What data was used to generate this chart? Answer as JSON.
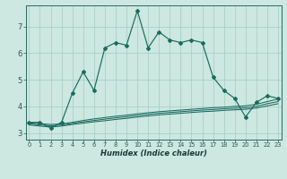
{
  "xlabel": "Humidex (Indice chaleur)",
  "bg_color": "#cce8e0",
  "grid_color": "#aacfc7",
  "line_color": "#1a6b60",
  "x_ticks": [
    0,
    1,
    2,
    3,
    4,
    5,
    6,
    7,
    8,
    9,
    10,
    11,
    12,
    13,
    14,
    15,
    16,
    17,
    18,
    19,
    20,
    21,
    22,
    23
  ],
  "y_ticks": [
    3,
    4,
    5,
    6,
    7
  ],
  "xlim": [
    -0.3,
    23.3
  ],
  "ylim": [
    2.75,
    7.8
  ],
  "main_line": {
    "x": [
      0,
      1,
      2,
      3,
      4,
      5,
      6,
      7,
      8,
      9,
      10,
      11,
      12,
      13,
      14,
      15,
      16,
      17,
      18,
      19,
      20,
      21,
      22,
      23
    ],
    "y": [
      3.4,
      3.4,
      3.2,
      3.4,
      4.5,
      5.3,
      4.6,
      6.2,
      6.4,
      6.3,
      7.6,
      6.2,
      6.8,
      6.5,
      6.4,
      6.5,
      6.4,
      5.1,
      4.6,
      4.3,
      3.6,
      4.15,
      4.4,
      4.3
    ]
  },
  "line2": {
    "x": [
      0,
      1,
      2,
      3,
      4,
      5,
      6,
      7,
      8,
      9,
      10,
      11,
      12,
      13,
      14,
      15,
      16,
      17,
      18,
      19,
      20,
      21,
      22,
      23
    ],
    "y": [
      3.38,
      3.35,
      3.32,
      3.34,
      3.4,
      3.47,
      3.53,
      3.58,
      3.63,
      3.67,
      3.72,
      3.76,
      3.8,
      3.83,
      3.86,
      3.89,
      3.92,
      3.95,
      3.97,
      4.0,
      4.02,
      4.08,
      4.18,
      4.28
    ]
  },
  "line3": {
    "x": [
      0,
      1,
      2,
      3,
      4,
      5,
      6,
      7,
      8,
      9,
      10,
      11,
      12,
      13,
      14,
      15,
      16,
      17,
      18,
      19,
      20,
      21,
      22,
      23
    ],
    "y": [
      3.35,
      3.3,
      3.27,
      3.3,
      3.36,
      3.42,
      3.47,
      3.52,
      3.57,
      3.61,
      3.66,
      3.7,
      3.74,
      3.77,
      3.8,
      3.83,
      3.86,
      3.88,
      3.91,
      3.93,
      3.95,
      4.0,
      4.1,
      4.18
    ]
  },
  "line4": {
    "x": [
      0,
      1,
      2,
      3,
      4,
      5,
      6,
      7,
      8,
      9,
      10,
      11,
      12,
      13,
      14,
      15,
      16,
      17,
      18,
      19,
      20,
      21,
      22,
      23
    ],
    "y": [
      3.3,
      3.26,
      3.22,
      3.26,
      3.32,
      3.37,
      3.42,
      3.46,
      3.51,
      3.55,
      3.6,
      3.64,
      3.68,
      3.71,
      3.74,
      3.77,
      3.8,
      3.82,
      3.85,
      3.87,
      3.89,
      3.94,
      4.02,
      4.1
    ]
  }
}
